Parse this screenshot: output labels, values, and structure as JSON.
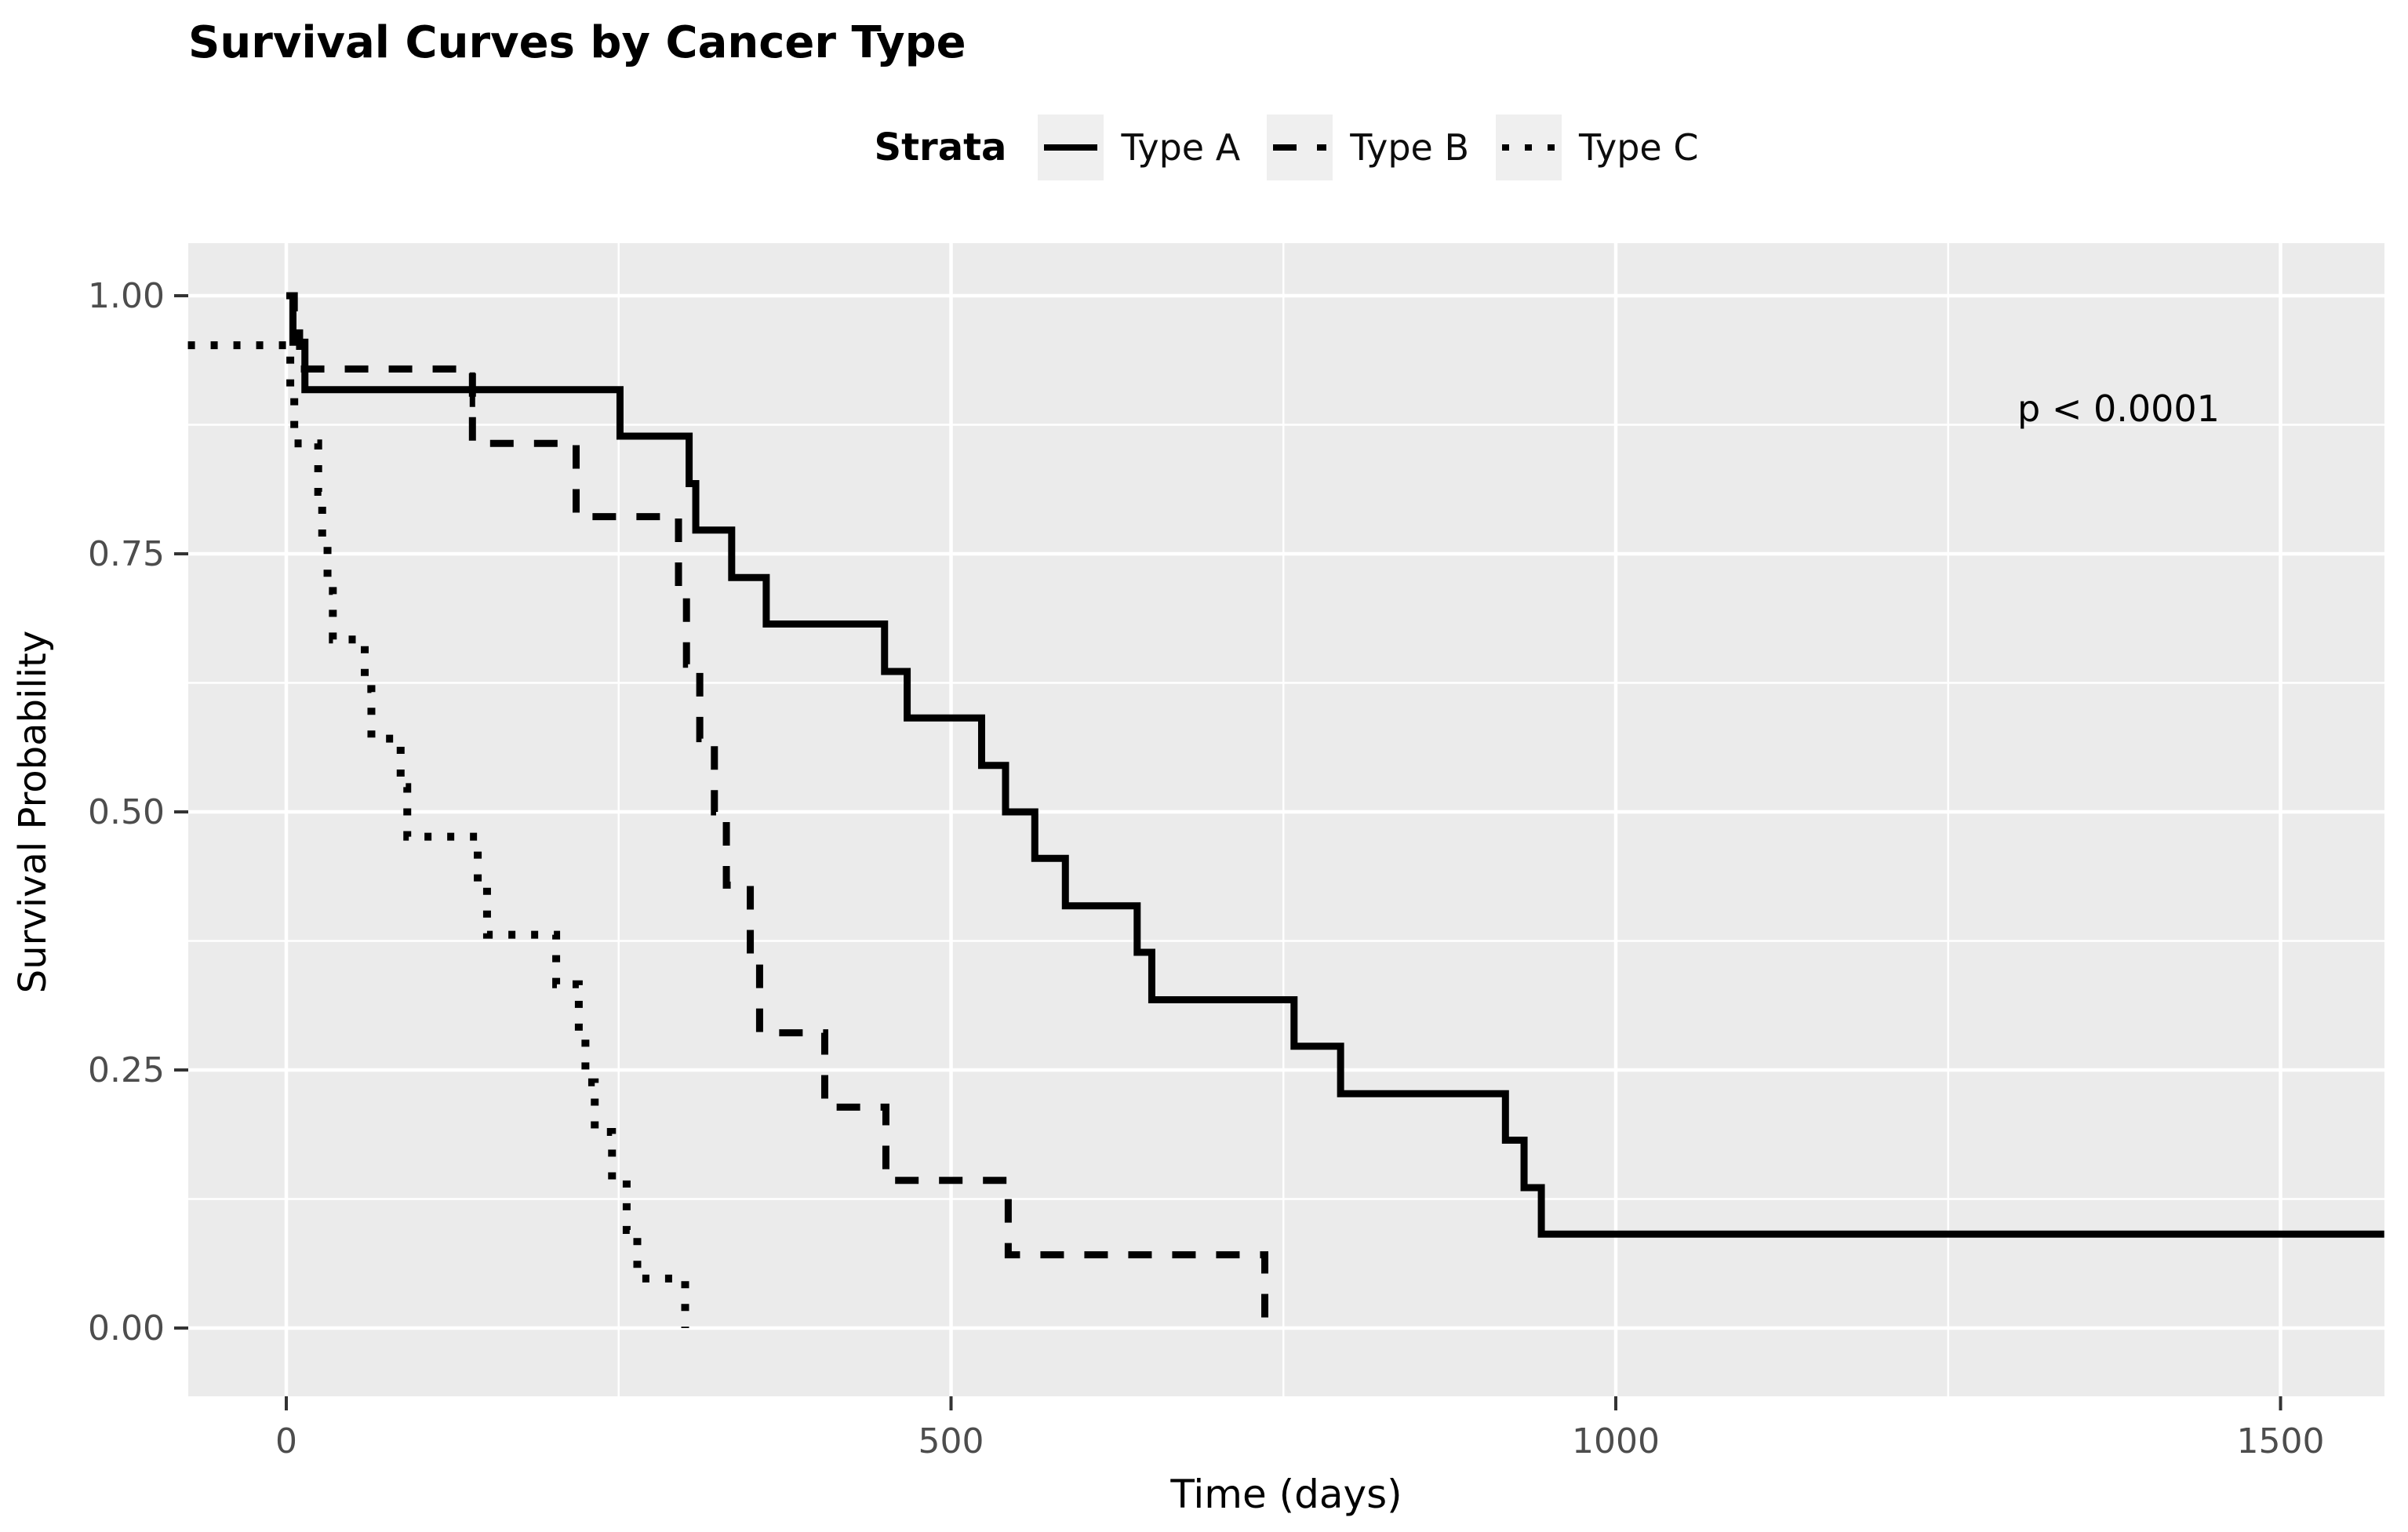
{
  "title": "Survival Curves by Cancer Type",
  "legend": {
    "title": "Strata",
    "items": [
      {
        "label": "Type A",
        "linetype": "solid"
      },
      {
        "label": "Type B",
        "linetype": "dashed"
      },
      {
        "label": "Type C",
        "linetype": "dotted"
      }
    ]
  },
  "annotation": {
    "p_value_text": "p < 0.0001"
  },
  "axes": {
    "x_title": "Time (days)",
    "y_title": "Survival Probability",
    "x_tick_labels": [
      "0",
      "500",
      "1000",
      "1500"
    ],
    "y_tick_labels": [
      "0.00",
      "0.25",
      "0.50",
      "0.75",
      "1.00"
    ]
  },
  "colors": {
    "panel_bg": "#EBEBEB",
    "grid": "#FFFFFF",
    "curve": "#000000",
    "tick_text": "#4D4D4D",
    "axis_text": "#000000",
    "legend_key_bg": "#EFEFEF",
    "tick_mark": "#333333"
  },
  "chart_data": {
    "type": "line",
    "subtype": "kaplan-meier-step",
    "title": "Survival Curves by Cancer Type",
    "xlabel": "Time (days)",
    "ylabel": "Survival Probability",
    "xlim": [
      -74,
      1578
    ],
    "ylim": [
      -0.066,
      1.051
    ],
    "x_ticks": [
      0,
      500,
      1000,
      1500
    ],
    "x_minor_ticks": [
      250,
      750,
      1250
    ],
    "y_ticks": [
      0,
      0.25,
      0.5,
      0.75,
      1.0
    ],
    "y_minor_ticks": [
      0.125,
      0.375,
      0.625,
      0.875
    ],
    "grid": true,
    "legend_position": "top",
    "legend_title": "Strata",
    "annotation": {
      "text": "p < 0.0001",
      "t": 1280,
      "v": 0.895
    },
    "series": [
      {
        "name": "Type C",
        "linetype": "dotted",
        "stroke_width": 10,
        "extend_to": null,
        "points": [
          [
            -74,
            0.952
          ],
          [
            3,
            0.905
          ],
          [
            6,
            0.857
          ],
          [
            24,
            0.81
          ],
          [
            27,
            0.762
          ],
          [
            31,
            0.714
          ],
          [
            35,
            0.667
          ],
          [
            59,
            0.619
          ],
          [
            64,
            0.571
          ],
          [
            86,
            0.524
          ],
          [
            91,
            0.476
          ],
          [
            144,
            0.429
          ],
          [
            151,
            0.381
          ],
          [
            203,
            0.333
          ],
          [
            220,
            0.286
          ],
          [
            225,
            0.238
          ],
          [
            232,
            0.19
          ],
          [
            245,
            0.143
          ],
          [
            256,
            0.095
          ],
          [
            264,
            0.048
          ],
          [
            300,
            0.0
          ]
        ]
      },
      {
        "name": "Type B",
        "linetype": "dashed",
        "stroke_width": 9,
        "extend_to": null,
        "points": [
          [
            0,
            1.0
          ],
          [
            6,
            0.964
          ],
          [
            10,
            0.929
          ],
          [
            140,
            0.857
          ],
          [
            218,
            0.786
          ],
          [
            295,
            0.714
          ],
          [
            301,
            0.643
          ],
          [
            311,
            0.571
          ],
          [
            322,
            0.5
          ],
          [
            331,
            0.429
          ],
          [
            349,
            0.357
          ],
          [
            356,
            0.286
          ],
          [
            405,
            0.214
          ],
          [
            451,
            0.143
          ],
          [
            543,
            0.071
          ],
          [
            736,
            0.0
          ]
        ]
      },
      {
        "name": "Type A",
        "linetype": "solid",
        "stroke_width": 9,
        "extend_to": 1578,
        "points": [
          [
            0,
            1.0
          ],
          [
            5,
            0.955
          ],
          [
            14,
            0.909
          ],
          [
            251,
            0.864
          ],
          [
            303,
            0.818
          ],
          [
            308,
            0.773
          ],
          [
            335,
            0.727
          ],
          [
            361,
            0.682
          ],
          [
            450,
            0.636
          ],
          [
            467,
            0.591
          ],
          [
            523,
            0.545
          ],
          [
            541,
            0.5
          ],
          [
            563,
            0.455
          ],
          [
            586,
            0.409
          ],
          [
            640,
            0.364
          ],
          [
            651,
            0.318
          ],
          [
            758,
            0.273
          ],
          [
            793,
            0.227
          ],
          [
            917,
            0.182
          ],
          [
            931,
            0.136
          ],
          [
            944,
            0.091
          ]
        ]
      }
    ],
    "censor_marks": [
      {
        "series": "Type A",
        "t": 140,
        "v": 0.909
      }
    ]
  }
}
